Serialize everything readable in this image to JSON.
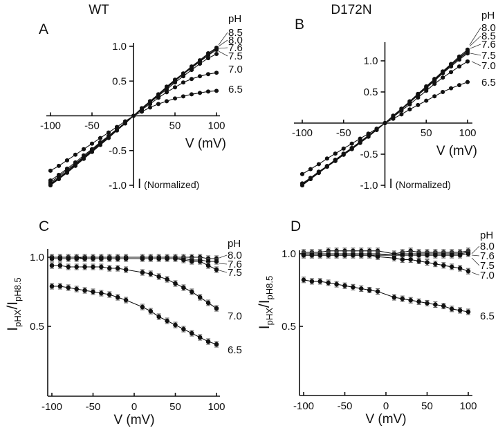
{
  "figure": {
    "column_titles": [
      "WT",
      "D172N"
    ],
    "panel_letters": [
      "A",
      "B",
      "C",
      "D"
    ],
    "legend_title": "pH"
  },
  "chart_data": [
    {
      "panel": "A",
      "type": "line",
      "title": "WT",
      "xlabel": "V (mV)",
      "ylabel": "I (Normalized)",
      "xlim": [
        -100,
        100
      ],
      "ylim": [
        -1.0,
        1.0
      ],
      "xticks": [
        -100,
        -50,
        50,
        100
      ],
      "xtick_labels": [
        "-100",
        "-50",
        "50",
        "100"
      ],
      "yticks": [
        1.0,
        0.5,
        -0.5,
        -1.0
      ],
      "ytick_labels": [
        "1.0",
        "0.5",
        "-0.5",
        "-1.0"
      ],
      "legend_title": "pH",
      "legend_labels": [
        "8.5",
        "8.0",
        "7.6",
        "7.5",
        "7.0",
        "6.5"
      ],
      "x": [
        -100,
        -90,
        -80,
        -70,
        -60,
        -50,
        -40,
        -30,
        -20,
        -10,
        0,
        10,
        20,
        30,
        40,
        50,
        60,
        70,
        80,
        90,
        100
      ],
      "series": [
        {
          "name": "8.5",
          "values": [
            -1.0,
            -0.91,
            -0.82,
            -0.72,
            -0.62,
            -0.52,
            -0.42,
            -0.32,
            -0.21,
            -0.11,
            0,
            0.11,
            0.21,
            0.31,
            0.42,
            0.52,
            0.61,
            0.71,
            0.8,
            0.9,
            0.98
          ]
        },
        {
          "name": "8.0",
          "values": [
            -0.99,
            -0.9,
            -0.81,
            -0.71,
            -0.61,
            -0.51,
            -0.41,
            -0.31,
            -0.21,
            -0.11,
            0,
            0.11,
            0.21,
            0.31,
            0.41,
            0.51,
            0.61,
            0.7,
            0.79,
            0.88,
            0.97
          ]
        },
        {
          "name": "7.6",
          "values": [
            -0.98,
            -0.89,
            -0.8,
            -0.7,
            -0.6,
            -0.5,
            -0.4,
            -0.31,
            -0.21,
            -0.1,
            0,
            0.1,
            0.2,
            0.3,
            0.4,
            0.5,
            0.6,
            0.69,
            0.78,
            0.87,
            0.95
          ]
        },
        {
          "name": "7.5",
          "values": [
            -0.96,
            -0.87,
            -0.78,
            -0.69,
            -0.59,
            -0.49,
            -0.39,
            -0.3,
            -0.2,
            -0.1,
            0,
            0.1,
            0.19,
            0.29,
            0.38,
            0.48,
            0.57,
            0.66,
            0.75,
            0.83,
            0.89
          ]
        },
        {
          "name": "7.0",
          "values": [
            -0.93,
            -0.85,
            -0.76,
            -0.67,
            -0.57,
            -0.48,
            -0.38,
            -0.29,
            -0.19,
            -0.1,
            0,
            0.09,
            0.17,
            0.26,
            0.34,
            0.41,
            0.48,
            0.53,
            0.57,
            0.6,
            0.62
          ]
        },
        {
          "name": "6.5",
          "values": [
            -0.79,
            -0.72,
            -0.64,
            -0.56,
            -0.48,
            -0.4,
            -0.32,
            -0.24,
            -0.16,
            -0.08,
            0,
            0.06,
            0.12,
            0.17,
            0.21,
            0.25,
            0.28,
            0.31,
            0.33,
            0.35,
            0.36
          ]
        }
      ]
    },
    {
      "panel": "B",
      "type": "line",
      "title": "D172N",
      "xlabel": "V (mV)",
      "ylabel": "I (Normalized)",
      "xlim": [
        -100,
        100
      ],
      "ylim": [
        -1.0,
        1.3
      ],
      "xticks": [
        -100,
        -50,
        50,
        100
      ],
      "xtick_labels": [
        "-100",
        "-50",
        "50",
        "100"
      ],
      "yticks": [
        1.0,
        0.5,
        -0.5,
        -1.0
      ],
      "ytick_labels": [
        "1.0",
        "0.5",
        "-0.5",
        "-1.0"
      ],
      "legend_title": "pH",
      "legend_labels": [
        "8.0",
        "8.5",
        "7.6",
        "7.5",
        "7.0",
        "6.5"
      ],
      "x": [
        -100,
        -90,
        -80,
        -70,
        -60,
        -50,
        -40,
        -30,
        -20,
        -10,
        0,
        10,
        20,
        30,
        40,
        50,
        60,
        70,
        80,
        90,
        100
      ],
      "series": [
        {
          "name": "8.0",
          "values": [
            -1.0,
            -0.9,
            -0.8,
            -0.7,
            -0.61,
            -0.51,
            -0.42,
            -0.32,
            -0.22,
            -0.11,
            0,
            0.12,
            0.23,
            0.35,
            0.47,
            0.59,
            0.71,
            0.83,
            0.95,
            1.07,
            1.18
          ]
        },
        {
          "name": "8.5",
          "values": [
            -1.0,
            -0.9,
            -0.8,
            -0.7,
            -0.6,
            -0.5,
            -0.41,
            -0.31,
            -0.21,
            -0.11,
            0,
            0.11,
            0.23,
            0.34,
            0.46,
            0.58,
            0.7,
            0.82,
            0.94,
            1.05,
            1.16
          ]
        },
        {
          "name": "7.6",
          "values": [
            -0.99,
            -0.89,
            -0.79,
            -0.7,
            -0.6,
            -0.5,
            -0.41,
            -0.31,
            -0.21,
            -0.11,
            0,
            0.11,
            0.22,
            0.34,
            0.45,
            0.57,
            0.69,
            0.81,
            0.93,
            1.04,
            1.14
          ]
        },
        {
          "name": "7.5",
          "values": [
            -0.98,
            -0.89,
            -0.79,
            -0.69,
            -0.59,
            -0.5,
            -0.4,
            -0.31,
            -0.21,
            -0.1,
            0,
            0.11,
            0.22,
            0.33,
            0.45,
            0.56,
            0.68,
            0.8,
            0.91,
            1.02,
            1.12
          ]
        },
        {
          "name": "7.0",
          "values": [
            -0.97,
            -0.88,
            -0.78,
            -0.69,
            -0.59,
            -0.49,
            -0.4,
            -0.3,
            -0.2,
            -0.1,
            0,
            0.1,
            0.2,
            0.3,
            0.41,
            0.52,
            0.63,
            0.73,
            0.82,
            0.91,
            0.99
          ]
        },
        {
          "name": "6.5",
          "values": [
            -0.82,
            -0.74,
            -0.66,
            -0.57,
            -0.49,
            -0.41,
            -0.33,
            -0.25,
            -0.17,
            -0.09,
            0,
            0.07,
            0.14,
            0.22,
            0.29,
            0.36,
            0.43,
            0.5,
            0.56,
            0.61,
            0.66
          ]
        }
      ]
    },
    {
      "panel": "C",
      "type": "line",
      "title": "",
      "xlabel": "V (mV)",
      "ylabel": "I_pHX / I_pH8.5",
      "ylabel_main": "I",
      "ylabel_sub1": "pHX",
      "ylabel_sep": "/I",
      "ylabel_sub2": "pH8.5",
      "xlim": [
        -100,
        100
      ],
      "ylim": [
        0.0,
        1.02
      ],
      "xticks": [
        -100,
        -50,
        0,
        50,
        100
      ],
      "xtick_labels": [
        "-100",
        "-50",
        "0",
        "50",
        "100"
      ],
      "yticks": [
        1.0,
        0.5
      ],
      "ytick_labels": [
        "1.0",
        "0.5"
      ],
      "legend_title": "pH",
      "legend_labels": [
        "8.0",
        "7.6",
        "7.5",
        "7.0",
        "6.5"
      ],
      "x": [
        -100,
        -90,
        -80,
        -70,
        -60,
        -50,
        -40,
        -30,
        -20,
        -10,
        10,
        20,
        30,
        40,
        50,
        60,
        70,
        80,
        90,
        100
      ],
      "series": [
        {
          "name": "8.0",
          "values": [
            1.0,
            1.0,
            1.0,
            1.0,
            1.0,
            1.0,
            1.0,
            1.0,
            1.0,
            1.0,
            1.0,
            1.0,
            1.0,
            1.0,
            1.0,
            1.0,
            1.0,
            1.0,
            0.99,
            0.99
          ]
        },
        {
          "name": "7.6",
          "values": [
            1.0,
            1.0,
            1.0,
            1.0,
            0.99,
            0.99,
            0.99,
            0.99,
            0.99,
            0.99,
            0.99,
            0.99,
            0.99,
            0.99,
            0.99,
            0.99,
            0.98,
            0.98,
            0.97,
            0.97
          ]
        },
        {
          "name": "7.5",
          "values": [
            0.99,
            0.99,
            0.99,
            0.99,
            0.99,
            0.99,
            0.99,
            0.99,
            0.99,
            0.99,
            0.99,
            0.99,
            0.99,
            0.99,
            0.99,
            0.98,
            0.97,
            0.97,
            0.94,
            0.91
          ]
        },
        {
          "name": "7.0",
          "values": [
            0.94,
            0.94,
            0.93,
            0.93,
            0.93,
            0.93,
            0.93,
            0.92,
            0.92,
            0.91,
            0.89,
            0.88,
            0.86,
            0.84,
            0.81,
            0.78,
            0.75,
            0.71,
            0.67,
            0.63
          ]
        },
        {
          "name": "6.5",
          "values": [
            0.79,
            0.79,
            0.78,
            0.77,
            0.76,
            0.75,
            0.74,
            0.73,
            0.71,
            0.69,
            0.64,
            0.61,
            0.57,
            0.54,
            0.51,
            0.48,
            0.45,
            0.42,
            0.39,
            0.37
          ]
        }
      ]
    },
    {
      "panel": "D",
      "type": "line",
      "title": "",
      "xlabel": "V (mV)",
      "ylabel": "I_pHX / I_pH8.5",
      "ylabel_main": "I",
      "ylabel_sub1": "pHX",
      "ylabel_sep": "/I",
      "ylabel_sub2": "pH8.5",
      "xlim": [
        -100,
        100
      ],
      "ylim": [
        0.0,
        1.04
      ],
      "xticks": [
        -100,
        -50,
        0,
        50,
        100
      ],
      "xtick_labels": [
        "-100",
        "-50",
        "0",
        "50",
        "100"
      ],
      "yticks": [
        1.0,
        0.5
      ],
      "ytick_labels": [
        "1.0",
        "0.5"
      ],
      "legend_title": "pH",
      "legend_labels": [
        "8.0",
        "7.6",
        "7.5",
        "7.0",
        "6.5"
      ],
      "x": [
        -100,
        -90,
        -80,
        -70,
        -60,
        -50,
        -40,
        -30,
        -20,
        -10,
        10,
        20,
        30,
        40,
        50,
        60,
        70,
        80,
        90,
        100
      ],
      "series": [
        {
          "name": "8.0",
          "values": [
            1.01,
            1.01,
            1.01,
            1.02,
            1.02,
            1.02,
            1.02,
            1.02,
            1.02,
            1.02,
            1.0,
            1.01,
            1.02,
            1.01,
            1.01,
            1.01,
            1.01,
            1.01,
            1.01,
            1.02
          ]
        },
        {
          "name": "7.6",
          "values": [
            1.0,
            1.0,
            1.0,
            1.0,
            1.0,
            1.0,
            1.0,
            1.0,
            1.0,
            1.0,
            0.99,
            1.0,
            1.0,
            1.0,
            1.0,
            1.0,
            1.0,
            1.0,
            1.0,
            1.01
          ]
        },
        {
          "name": "7.5",
          "values": [
            0.99,
            0.99,
            0.99,
            0.99,
            0.99,
            0.99,
            0.99,
            0.99,
            0.99,
            0.99,
            0.99,
            0.99,
            0.99,
            0.99,
            0.99,
            0.99,
            0.99,
            0.99,
            0.99,
            1.0
          ]
        },
        {
          "name": "7.0",
          "values": [
            0.99,
            0.99,
            0.99,
            0.99,
            0.99,
            0.99,
            0.99,
            0.99,
            0.99,
            0.98,
            0.97,
            0.96,
            0.96,
            0.95,
            0.94,
            0.93,
            0.92,
            0.91,
            0.9,
            0.88
          ]
        },
        {
          "name": "6.5",
          "values": [
            0.82,
            0.81,
            0.81,
            0.8,
            0.79,
            0.78,
            0.77,
            0.76,
            0.75,
            0.74,
            0.7,
            0.69,
            0.68,
            0.67,
            0.66,
            0.65,
            0.64,
            0.62,
            0.61,
            0.6
          ]
        }
      ]
    }
  ]
}
